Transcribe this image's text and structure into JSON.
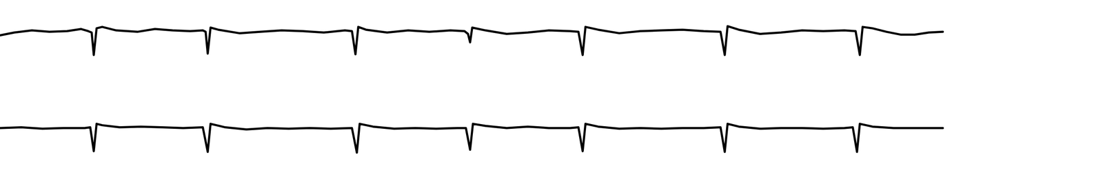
{
  "chart_data": {
    "type": "line",
    "tick_labels": false,
    "grid": false,
    "xlim": [
      0,
      1568
    ],
    "ylim": [
      0,
      262
    ],
    "series": [
      {
        "color": "#000000",
        "x": [
          0,
          20,
          45,
          70,
          95,
          115,
          125,
          130,
          133,
          137,
          145,
          165,
          195,
          220,
          245,
          270,
          288,
          292,
          295,
          299,
          310,
          340,
          370,
          400,
          430,
          460,
          490,
          500,
          505,
          509,
          520,
          550,
          580,
          610,
          640,
          660,
          665,
          668,
          671,
          690,
          720,
          750,
          780,
          810,
          822,
          828,
          832,
          850,
          880,
          910,
          940,
          970,
          1000,
          1024,
          1030,
          1034,
          1050,
          1080,
          1110,
          1140,
          1170,
          1200,
          1216,
          1222,
          1226,
          1240,
          1260,
          1280,
          1300,
          1320,
          1340
        ],
        "values": [
          212,
          216,
          219,
          217,
          218,
          221,
          218,
          216,
          184,
          222,
          224,
          219,
          217,
          221,
          219,
          218,
          219,
          217,
          186,
          223,
          220,
          215,
          217,
          219,
          218,
          216,
          219,
          218,
          185,
          224,
          220,
          216,
          219,
          217,
          219,
          218,
          214,
          202,
          223,
          219,
          214,
          216,
          219,
          218,
          217,
          184,
          224,
          220,
          215,
          218,
          219,
          220,
          218,
          217,
          184,
          225,
          220,
          214,
          216,
          219,
          218,
          219,
          218,
          184,
          224,
          222,
          217,
          213,
          213,
          216,
          217
        ]
      },
      {
        "color": "#000000",
        "x": [
          0,
          30,
          60,
          90,
          120,
          128,
          133,
          137,
          145,
          170,
          200,
          230,
          260,
          288,
          295,
          299,
          320,
          350,
          380,
          410,
          440,
          470,
          500,
          507,
          511,
          530,
          560,
          590,
          620,
          650,
          662,
          668,
          672,
          690,
          720,
          750,
          780,
          810,
          822,
          828,
          832,
          850,
          880,
          910,
          940,
          970,
          1000,
          1024,
          1030,
          1034,
          1050,
          1080,
          1110,
          1140,
          1170,
          1200,
          1212,
          1218,
          1222,
          1240,
          1270,
          1300,
          1340
        ],
        "values": [
          80,
          81,
          79,
          80,
          80,
          81,
          47,
          86,
          84,
          81,
          82,
          81,
          80,
          81,
          46,
          86,
          81,
          78,
          80,
          79,
          80,
          79,
          80,
          45,
          86,
          82,
          79,
          80,
          79,
          80,
          80,
          49,
          86,
          83,
          80,
          82,
          80,
          80,
          81,
          47,
          86,
          82,
          79,
          80,
          79,
          80,
          80,
          81,
          46,
          86,
          82,
          79,
          80,
          80,
          79,
          80,
          81,
          46,
          86,
          82,
          80,
          80,
          80
        ]
      }
    ]
  }
}
